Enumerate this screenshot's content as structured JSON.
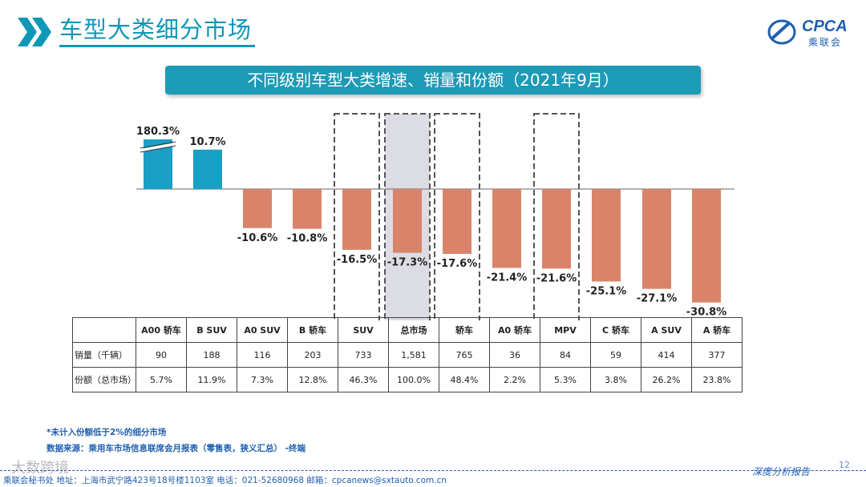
{
  "header": {
    "title": "车型大类细分市场",
    "logo_text": "CPCA",
    "logo_sub": "乘联会"
  },
  "banner": "不同级别车型大类增速、销量和份额（2021年9月）",
  "chart_data": {
    "type": "bar",
    "title": "不同级别车型大类增速、销量和份额（2021年9月）",
    "categories": [
      "A00 轿车",
      "B SUV",
      "A0 SUV",
      "B 轿车",
      "SUV",
      "总市场",
      "轿车",
      "A0 轿车",
      "MPV",
      "C 轿车",
      "A SUV",
      "A 轿车"
    ],
    "values": [
      180.3,
      10.7,
      -10.6,
      -10.8,
      -16.5,
      -17.3,
      -17.6,
      -21.4,
      -21.6,
      -25.1,
      -27.1,
      -30.8
    ],
    "value_labels": [
      "180.3%",
      "10.7%",
      "-10.6%",
      "-10.8%",
      "-16.5%",
      "-17.3%",
      "-17.6%",
      "-21.4%",
      "-21.6%",
      "-25.1%",
      "-27.1%",
      "-30.8%"
    ],
    "axis_break_on_first": true,
    "highlighted": [
      "SUV",
      "总市场",
      "轿车",
      "MPV"
    ],
    "colors": {
      "positive": "#1a9fc6",
      "negative": "#d9846a",
      "total_bg": "#dcdce4"
    }
  },
  "table": {
    "headers": [
      "A00 轿车",
      "B SUV",
      "A0 SUV",
      "B 轿车",
      "SUV",
      "总市场",
      "轿车",
      "A0 轿车",
      "MPV",
      "C 轿车",
      "A SUV",
      "A 轿车"
    ],
    "rows": [
      {
        "label": "销量（千辆）",
        "values": [
          "90",
          "188",
          "116",
          "203",
          "733",
          "1,581",
          "765",
          "36",
          "84",
          "59",
          "414",
          "377"
        ]
      },
      {
        "label": "份额（总市场）",
        "values": [
          "5.7%",
          "11.9%",
          "7.3%",
          "12.8%",
          "46.3%",
          "100.0%",
          "48.4%",
          "2.2%",
          "5.3%",
          "3.8%",
          "26.2%",
          "23.8%"
        ]
      }
    ]
  },
  "notes": {
    "note1": "*未计入份额低于2%的细分市场",
    "note2": "数据来源：乘用车市场信息联席会月报表（零售表，狭义汇总）  -终端"
  },
  "footer": {
    "contact": "乘联会秘书处    地址：上海市武宁路423号18号楼1103室    电话：021-52680968    邮箱：cpcanews@sxtauto.com.cn",
    "tagline": "深度分析报告",
    "page": "12",
    "watermark": "大数跨境"
  }
}
